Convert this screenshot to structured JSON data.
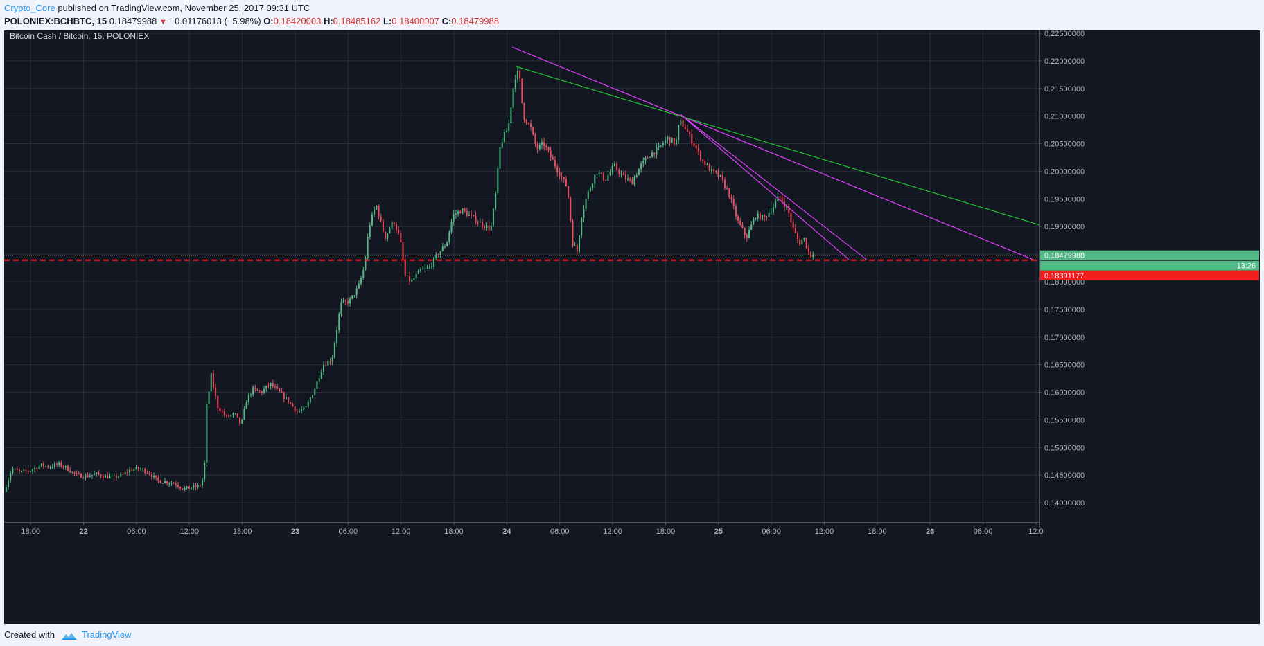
{
  "header": {
    "author": "Crypto_Core",
    "published_text": "published on TradingView.com, November 25, 2017 09:31 UTC",
    "symbol": "POLONIEX:BCHBTC, 15",
    "last": "0.18479988",
    "change": "−0.01176013 (−5.98%)",
    "o_label": "O:",
    "o": "0.18420003",
    "h_label": "H:",
    "h": "0.18485162",
    "l_label": "L:",
    "l": "0.18400007",
    "c_label": "C:",
    "c": "0.18479988"
  },
  "footer": {
    "created_with": "Created with",
    "brand": "TradingView"
  },
  "colors": {
    "background": "#131722",
    "grid": "#2a2e39",
    "up": "#53b987",
    "down": "#eb4d5c",
    "magenta_line": "#e040fb",
    "green_line": "#22c230",
    "support": "#ff1a1a",
    "axis_text": "#b2b5be"
  },
  "chart_data": {
    "type": "candlestick",
    "title": "Bitcoin Cash / Bitcoin, 15, POLONIEX",
    "ylim": [
      0.1365,
      0.2255
    ],
    "y_ticks": [
      "0.14000000",
      "0.14500000",
      "0.15000000",
      "0.15500000",
      "0.16000000",
      "0.16500000",
      "0.17000000",
      "0.17500000",
      "0.18000000",
      "0.18500000",
      "0.19000000",
      "0.19500000",
      "0.20000000",
      "0.20500000",
      "0.21000000",
      "0.21500000",
      "0.22000000",
      "0.22500000"
    ],
    "x_ticks": [
      {
        "t": 18,
        "label": "18:00",
        "bold": false
      },
      {
        "t": 24,
        "label": "22",
        "bold": true
      },
      {
        "t": 30,
        "label": "06:00",
        "bold": false
      },
      {
        "t": 36,
        "label": "12:00",
        "bold": false
      },
      {
        "t": 42,
        "label": "18:00",
        "bold": false
      },
      {
        "t": 48,
        "label": "23",
        "bold": true
      },
      {
        "t": 54,
        "label": "06:00",
        "bold": false
      },
      {
        "t": 60,
        "label": "12:00",
        "bold": false
      },
      {
        "t": 66,
        "label": "18:00",
        "bold": false
      },
      {
        "t": 72,
        "label": "24",
        "bold": true
      },
      {
        "t": 78,
        "label": "06:00",
        "bold": false
      },
      {
        "t": 84,
        "label": "12:00",
        "bold": false
      },
      {
        "t": 90,
        "label": "18:00",
        "bold": false
      },
      {
        "t": 96,
        "label": "25",
        "bold": true
      },
      {
        "t": 102,
        "label": "06:00",
        "bold": false
      },
      {
        "t": 108,
        "label": "12:00",
        "bold": false
      },
      {
        "t": 114,
        "label": "18:00",
        "bold": false
      },
      {
        "t": 120,
        "label": "26",
        "bold": true
      },
      {
        "t": 126,
        "label": "06:00",
        "bold": false
      },
      {
        "t": 132,
        "label": "12:0",
        "bold": false
      }
    ],
    "x_range_hours": [
      15,
      132.4
    ],
    "price_path": [
      [
        15.1,
        0.142
      ],
      [
        16.0,
        0.1462
      ],
      [
        17.0,
        0.1455
      ],
      [
        18.0,
        0.1458
      ],
      [
        19.3,
        0.1468
      ],
      [
        20.3,
        0.1465
      ],
      [
        21.3,
        0.147
      ],
      [
        22.3,
        0.1462
      ],
      [
        23.3,
        0.145
      ],
      [
        24.5,
        0.1448
      ],
      [
        25.5,
        0.1452
      ],
      [
        26.5,
        0.1448
      ],
      [
        27.5,
        0.1445
      ],
      [
        28.5,
        0.145
      ],
      [
        29.5,
        0.146
      ],
      [
        30.5,
        0.1462
      ],
      [
        31.5,
        0.1455
      ],
      [
        32.5,
        0.144
      ],
      [
        33.5,
        0.1438
      ],
      [
        34.5,
        0.1435
      ],
      [
        35.5,
        0.1425
      ],
      [
        36.5,
        0.1428
      ],
      [
        37.3,
        0.143
      ],
      [
        37.8,
        0.145
      ],
      [
        38.1,
        0.1575
      ],
      [
        38.6,
        0.163
      ],
      [
        39.3,
        0.1575
      ],
      [
        40.3,
        0.1555
      ],
      [
        41.3,
        0.156
      ],
      [
        42.0,
        0.154
      ],
      [
        42.6,
        0.1585
      ],
      [
        43.3,
        0.1605
      ],
      [
        44.3,
        0.16
      ],
      [
        45.3,
        0.1615
      ],
      [
        46.3,
        0.16
      ],
      [
        47.3,
        0.1585
      ],
      [
        48.3,
        0.1565
      ],
      [
        49.3,
        0.157
      ],
      [
        50.3,
        0.1605
      ],
      [
        51.3,
        0.165
      ],
      [
        52.3,
        0.166
      ],
      [
        52.8,
        0.171
      ],
      [
        53.3,
        0.176
      ],
      [
        54.3,
        0.1765
      ],
      [
        55.3,
        0.179
      ],
      [
        56.0,
        0.183
      ],
      [
        56.5,
        0.19
      ],
      [
        57.3,
        0.194
      ],
      [
        58.3,
        0.188
      ],
      [
        59.3,
        0.191
      ],
      [
        60.0,
        0.188
      ],
      [
        60.6,
        0.181
      ],
      [
        61.3,
        0.18
      ],
      [
        62.3,
        0.182
      ],
      [
        63.3,
        0.1825
      ],
      [
        64.3,
        0.185
      ],
      [
        65.3,
        0.187
      ],
      [
        66.0,
        0.192
      ],
      [
        67.0,
        0.193
      ],
      [
        68.3,
        0.1915
      ],
      [
        69.3,
        0.1905
      ],
      [
        70.3,
        0.1895
      ],
      [
        70.8,
        0.195
      ],
      [
        71.4,
        0.205
      ],
      [
        72.3,
        0.208
      ],
      [
        73.0,
        0.217
      ],
      [
        73.5,
        0.218
      ],
      [
        74.0,
        0.21
      ],
      [
        74.8,
        0.208
      ],
      [
        75.5,
        0.204
      ],
      [
        76.3,
        0.205
      ],
      [
        77.3,
        0.202
      ],
      [
        78.3,
        0.199
      ],
      [
        79.0,
        0.197
      ],
      [
        79.6,
        0.187
      ],
      [
        80.1,
        0.1855
      ],
      [
        80.6,
        0.192
      ],
      [
        81.3,
        0.196
      ],
      [
        82.3,
        0.2
      ],
      [
        83.3,
        0.1985
      ],
      [
        84.3,
        0.201
      ],
      [
        85.3,
        0.199
      ],
      [
        86.3,
        0.198
      ],
      [
        87.3,
        0.201
      ],
      [
        88.3,
        0.203
      ],
      [
        89.3,
        0.204
      ],
      [
        90.3,
        0.206
      ],
      [
        91.3,
        0.205
      ],
      [
        91.7,
        0.209
      ],
      [
        92.3,
        0.208
      ],
      [
        93.3,
        0.205
      ],
      [
        94.3,
        0.202
      ],
      [
        95.3,
        0.2
      ],
      [
        96.3,
        0.199
      ],
      [
        97.3,
        0.196
      ],
      [
        98.3,
        0.191
      ],
      [
        99.3,
        0.188
      ],
      [
        100.3,
        0.192
      ],
      [
        101.3,
        0.1915
      ],
      [
        102.3,
        0.1935
      ],
      [
        103.0,
        0.1955
      ],
      [
        104.0,
        0.193
      ],
      [
        104.6,
        0.1895
      ],
      [
        105.3,
        0.187
      ],
      [
        105.8,
        0.188
      ],
      [
        106.3,
        0.1855
      ],
      [
        106.6,
        0.1848
      ]
    ],
    "trendlines": [
      {
        "color": "magenta",
        "from": [
          72.6,
          0.2225
        ],
        "to": [
          131.7,
          0.184
        ]
      },
      {
        "color": "green",
        "from": [
          73.0,
          0.219
        ],
        "to": [
          132.4,
          0.1903
        ]
      },
      {
        "color": "magenta",
        "from": [
          91.7,
          0.2103
        ],
        "to": [
          110.8,
          0.184
        ]
      },
      {
        "color": "magenta",
        "from": [
          91.7,
          0.2103
        ],
        "to": [
          112.8,
          0.184
        ]
      }
    ],
    "support_level": 0.18391177,
    "support_label": "0.18391177",
    "last_price": 0.18479988,
    "last_price_label": "0.18479988",
    "countdown": "13:26"
  }
}
